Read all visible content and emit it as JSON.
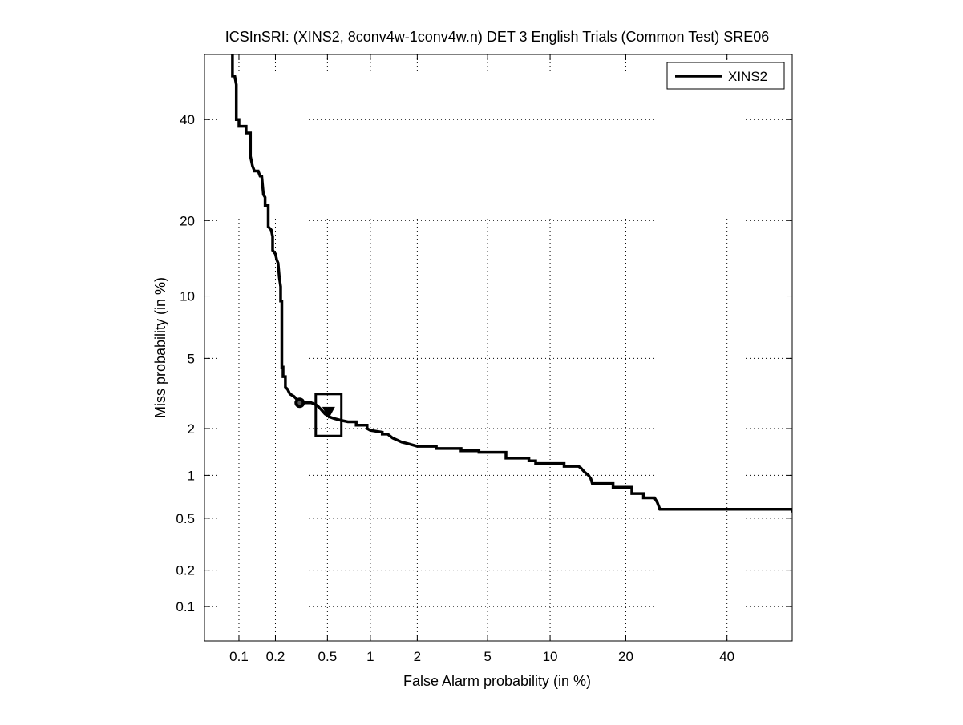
{
  "chart_data": {
    "type": "line",
    "title": "ICSInSRI: (XINS2, 8conv4w-1conv4w.n) DET 3 English Trials (Common Test) SRE06",
    "xlabel": "False Alarm probability (in %)",
    "ylabel": "Miss probability (in %)",
    "scale": "normal-deviate (probit) on both axes",
    "xlim": [
      0.05,
      55
    ],
    "ylim": [
      0.05,
      55
    ],
    "grid": true,
    "legend_position": "top-right",
    "x_ticks": [
      0.1,
      0.2,
      0.5,
      1,
      2,
      5,
      10,
      20,
      40
    ],
    "x_tick_labels": [
      "0.1",
      "0.2",
      "0.5",
      "1",
      "2",
      "5",
      "10",
      "20",
      "40"
    ],
    "y_ticks": [
      0.1,
      0.2,
      0.5,
      1,
      2,
      5,
      10,
      20,
      40
    ],
    "y_tick_labels": [
      "0.1",
      "0.2",
      "0.5",
      "1",
      "2",
      "5",
      "10",
      "20",
      "40"
    ],
    "series": [
      {
        "name": "XINS2",
        "color": "#000000",
        "points": [
          [
            0.088,
            55
          ],
          [
            0.088,
            50
          ],
          [
            0.092,
            50
          ],
          [
            0.095,
            48
          ],
          [
            0.095,
            40
          ],
          [
            0.1,
            40
          ],
          [
            0.1,
            38.5
          ],
          [
            0.115,
            38.5
          ],
          [
            0.115,
            37
          ],
          [
            0.125,
            37
          ],
          [
            0.125,
            32
          ],
          [
            0.13,
            30
          ],
          [
            0.135,
            29
          ],
          [
            0.145,
            29
          ],
          [
            0.15,
            28
          ],
          [
            0.155,
            28
          ],
          [
            0.16,
            24.5
          ],
          [
            0.165,
            24
          ],
          [
            0.165,
            22.5
          ],
          [
            0.175,
            22.5
          ],
          [
            0.175,
            19
          ],
          [
            0.185,
            18.5
          ],
          [
            0.19,
            17.5
          ],
          [
            0.19,
            15.5
          ],
          [
            0.2,
            15
          ],
          [
            0.205,
            14.2
          ],
          [
            0.21,
            13.8
          ],
          [
            0.215,
            12
          ],
          [
            0.22,
            11
          ],
          [
            0.22,
            9.5
          ],
          [
            0.225,
            9.5
          ],
          [
            0.225,
            4.5
          ],
          [
            0.23,
            4.5
          ],
          [
            0.23,
            4.0
          ],
          [
            0.24,
            4.0
          ],
          [
            0.24,
            3.5
          ],
          [
            0.25,
            3.4
          ],
          [
            0.26,
            3.2
          ],
          [
            0.28,
            3.1
          ],
          [
            0.3,
            2.95
          ],
          [
            0.32,
            2.85
          ],
          [
            0.38,
            2.85
          ],
          [
            0.4,
            2.8
          ],
          [
            0.42,
            2.75
          ],
          [
            0.45,
            2.6
          ],
          [
            0.48,
            2.45
          ],
          [
            0.52,
            2.35
          ],
          [
            0.56,
            2.3
          ],
          [
            0.62,
            2.25
          ],
          [
            0.7,
            2.2
          ],
          [
            0.8,
            2.2
          ],
          [
            0.8,
            2.1
          ],
          [
            0.95,
            2.1
          ],
          [
            0.95,
            2.0
          ],
          [
            1.0,
            1.95
          ],
          [
            1.2,
            1.9
          ],
          [
            1.2,
            1.85
          ],
          [
            1.3,
            1.85
          ],
          [
            1.4,
            1.75
          ],
          [
            1.6,
            1.65
          ],
          [
            1.8,
            1.6
          ],
          [
            2.0,
            1.55
          ],
          [
            2.6,
            1.55
          ],
          [
            2.6,
            1.5
          ],
          [
            3.6,
            1.5
          ],
          [
            3.6,
            1.45
          ],
          [
            4.5,
            1.45
          ],
          [
            4.5,
            1.42
          ],
          [
            6.2,
            1.42
          ],
          [
            6.2,
            1.3
          ],
          [
            8.0,
            1.3
          ],
          [
            8.0,
            1.25
          ],
          [
            8.6,
            1.25
          ],
          [
            8.6,
            1.2
          ],
          [
            11.5,
            1.2
          ],
          [
            11.5,
            1.15
          ],
          [
            13.2,
            1.15
          ],
          [
            13.5,
            1.12
          ],
          [
            14.0,
            1.05
          ],
          [
            14.5,
            1.0
          ],
          [
            14.8,
            0.95
          ],
          [
            15.0,
            0.88
          ],
          [
            18.0,
            0.88
          ],
          [
            18.0,
            0.83
          ],
          [
            21.0,
            0.83
          ],
          [
            21.0,
            0.75
          ],
          [
            23.0,
            0.75
          ],
          [
            23.0,
            0.7
          ],
          [
            25.0,
            0.7
          ],
          [
            25.5,
            0.65
          ],
          [
            26.0,
            0.58
          ],
          [
            55.0,
            0.58
          ],
          [
            55.0,
            0.55
          ]
        ]
      }
    ],
    "markers": [
      {
        "shape": "circle",
        "x": 0.31,
        "y": 2.85
      },
      {
        "shape": "triangle-down",
        "x": 0.51,
        "y": 2.5
      },
      {
        "shape": "square",
        "x_range": [
          0.41,
          0.63
        ],
        "y_range": [
          1.8,
          3.2
        ]
      }
    ]
  }
}
